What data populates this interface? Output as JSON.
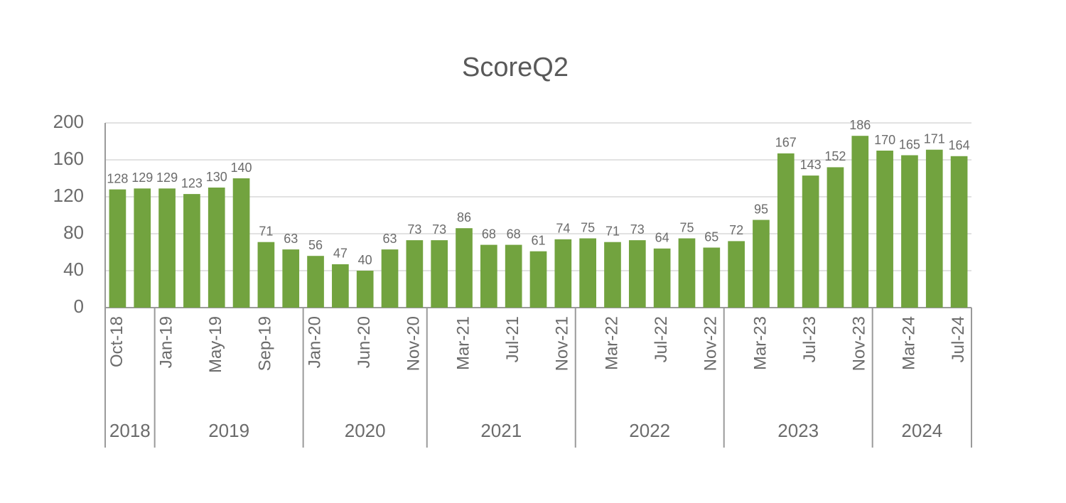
{
  "chart_data": {
    "type": "bar",
    "title": "ScoreQ2",
    "groups": [
      {
        "label": "2018",
        "categories": [
          "Oct-18",
          null
        ]
      },
      {
        "label": "2019",
        "categories": [
          "Jan-19",
          null,
          "May-19",
          null,
          "Sep-19",
          null
        ]
      },
      {
        "label": "2020",
        "categories": [
          "Jan-20",
          null,
          "Jun-20",
          null,
          "Nov-20"
        ]
      },
      {
        "label": "2021",
        "categories": [
          null,
          "Mar-21",
          null,
          "Jul-21",
          null,
          "Nov-21"
        ]
      },
      {
        "label": "2022",
        "categories": [
          null,
          "Mar-22",
          null,
          "Jul-22",
          null,
          "Nov-22"
        ]
      },
      {
        "label": "2023",
        "categories": [
          null,
          "Mar-23",
          null,
          "Jul-23",
          null,
          "Nov-23"
        ]
      },
      {
        "label": "2024",
        "categories": [
          null,
          "Mar-24",
          null,
          "Jul-24"
        ]
      }
    ],
    "values": [
      128,
      129,
      129,
      123,
      130,
      140,
      71,
      63,
      56,
      47,
      40,
      63,
      73,
      73,
      86,
      68,
      68,
      61,
      74,
      75,
      71,
      73,
      64,
      75,
      65,
      72,
      95,
      167,
      143,
      152,
      186,
      170,
      165,
      171,
      164
    ],
    "color": "#72a33f",
    "ylim": [
      0,
      200
    ],
    "yticks": [
      0,
      40,
      80,
      120,
      160,
      200
    ],
    "grid": true
  }
}
